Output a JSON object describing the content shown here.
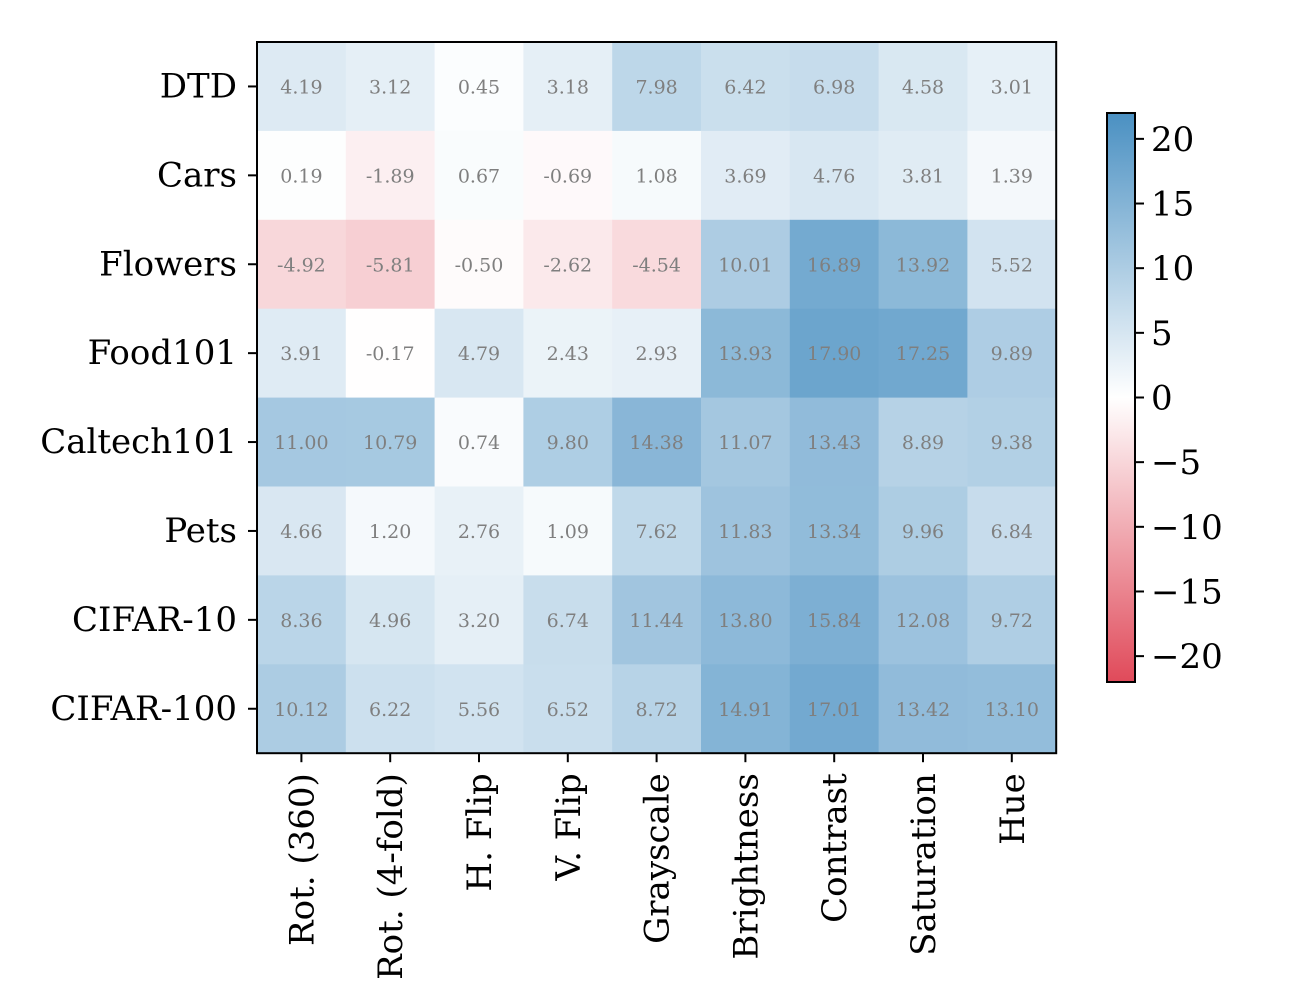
{
  "chart_data": {
    "type": "heatmap",
    "title": "",
    "xlabel": "",
    "ylabel": "",
    "rows": [
      "DTD",
      "Cars",
      "Flowers",
      "Food101",
      "Caltech101",
      "Pets",
      "CIFAR-10",
      "CIFAR-100"
    ],
    "columns": [
      "Rot. (360)",
      "Rot. (4-fold)",
      "H. Flip",
      "V. Flip",
      "Grayscale",
      "Brightness",
      "Contrast",
      "Saturation",
      "Hue"
    ],
    "values": [
      [
        4.19,
        3.12,
        0.45,
        3.18,
        7.98,
        6.42,
        6.98,
        4.58,
        3.01
      ],
      [
        0.19,
        -1.89,
        0.67,
        -0.69,
        1.08,
        3.69,
        4.76,
        3.81,
        1.39
      ],
      [
        -4.92,
        -5.81,
        -0.5,
        -2.62,
        -4.54,
        10.01,
        16.89,
        13.92,
        5.52
      ],
      [
        3.91,
        -0.17,
        4.79,
        2.43,
        2.93,
        13.93,
        17.9,
        17.25,
        9.89
      ],
      [
        11.0,
        10.79,
        0.74,
        9.8,
        14.38,
        11.07,
        13.43,
        8.89,
        9.38
      ],
      [
        4.66,
        1.2,
        2.76,
        1.09,
        7.62,
        11.83,
        13.34,
        9.96,
        6.84
      ],
      [
        8.36,
        4.96,
        3.2,
        6.74,
        11.44,
        13.8,
        15.84,
        12.08,
        9.72
      ],
      [
        10.12,
        6.22,
        5.56,
        6.52,
        8.72,
        14.91,
        17.01,
        13.42,
        13.1
      ]
    ],
    "value_format_decimals": 2,
    "colorbar": {
      "range": [
        -22,
        22
      ],
      "ticks": [
        20,
        15,
        10,
        5,
        0,
        -5,
        -10,
        -15,
        -20
      ],
      "tick_labels": [
        "20",
        "15",
        "10",
        "5",
        "0",
        "−5",
        "−10",
        "−15",
        "−20"
      ],
      "position": "right"
    },
    "colors": {
      "positive": "#4a90c2",
      "zero": "#ffffff",
      "negative": "#e04a5a",
      "cell_text": "#7f7f7f",
      "axes": "#000000"
    }
  }
}
